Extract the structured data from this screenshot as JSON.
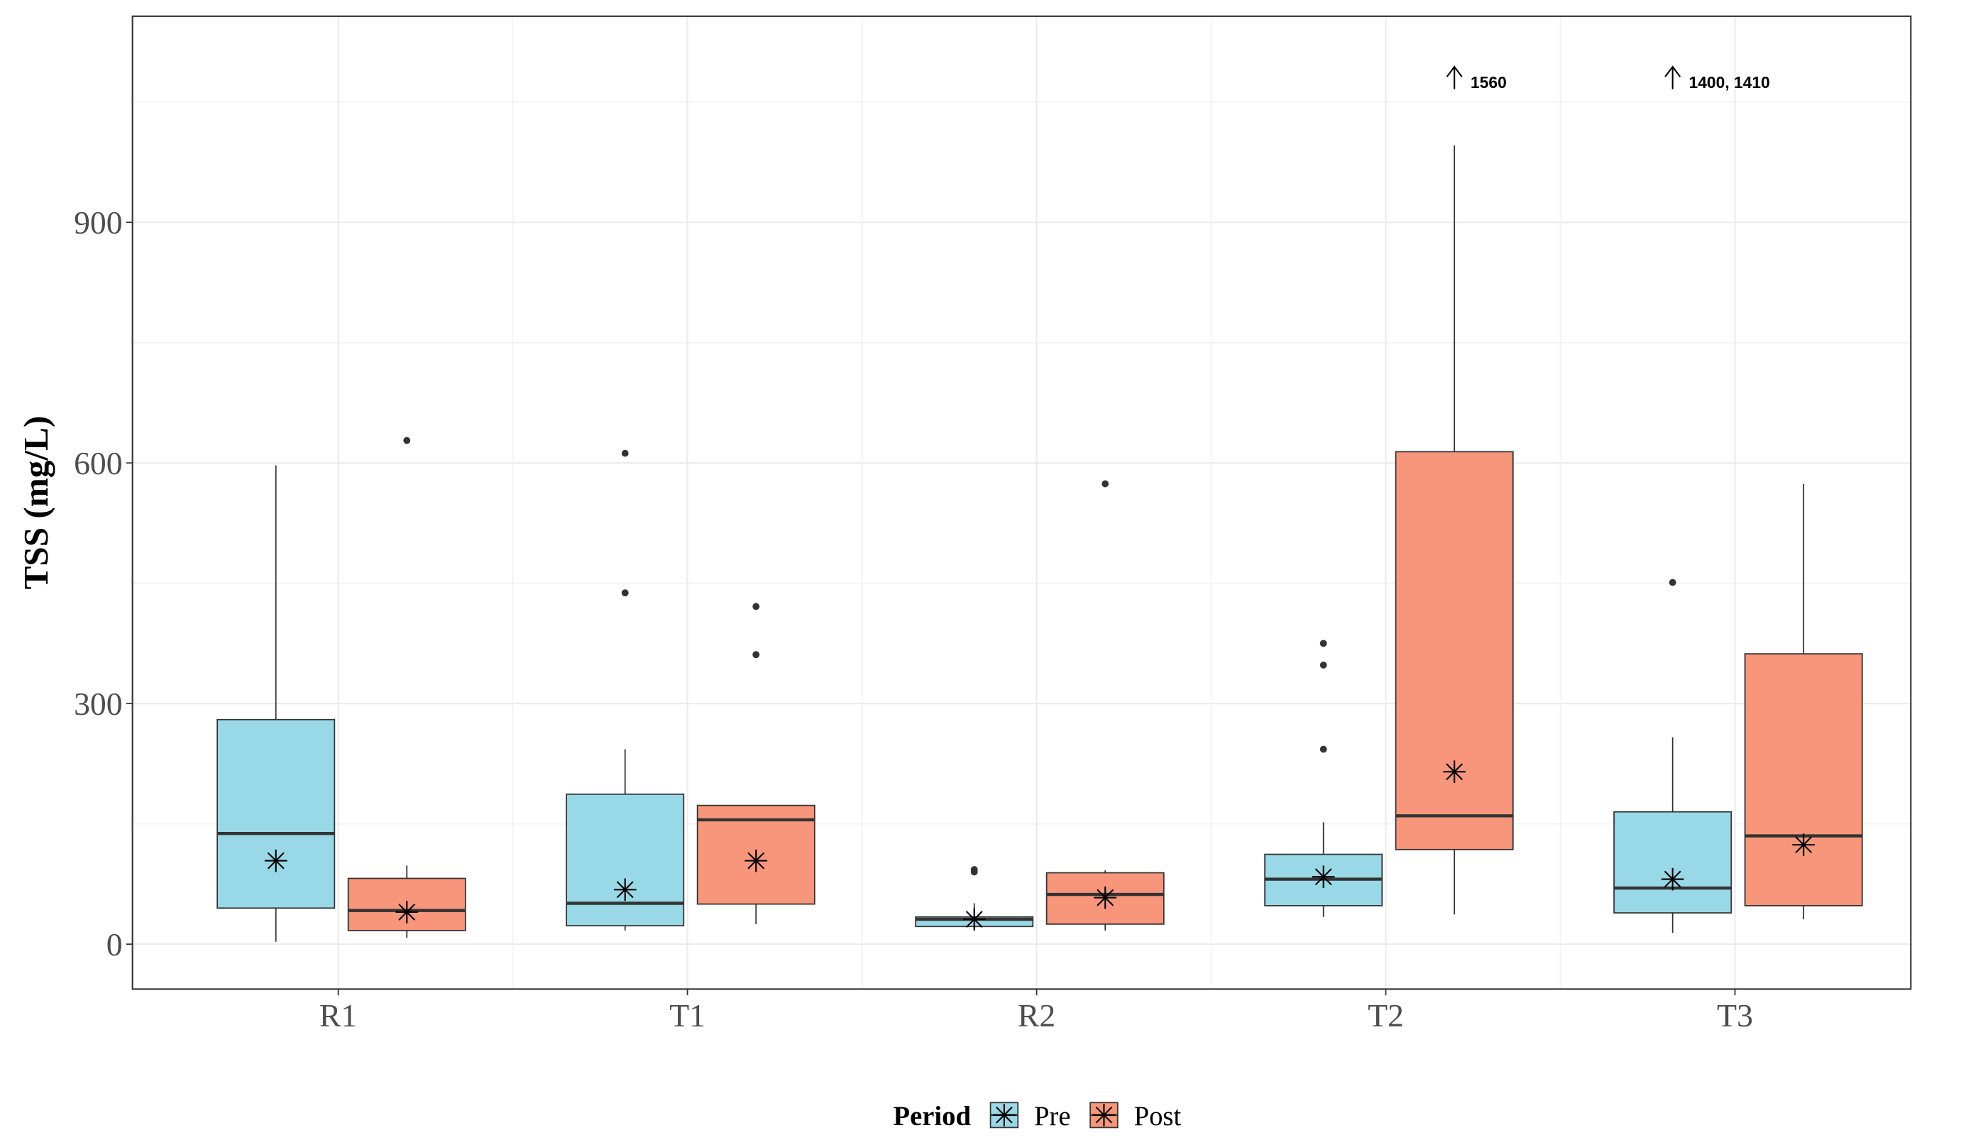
{
  "chart_data": {
    "type": "box",
    "y_label": "TSS (mg/L)",
    "legend_title": "Period",
    "legend_position": "bottom",
    "grid": true,
    "categories": [
      "R1",
      "T1",
      "R2",
      "T2",
      "T3"
    ],
    "ylim": [
      -56,
      1157
    ],
    "yticks": [
      0,
      300,
      600,
      900
    ],
    "y_minor_ticks": [
      150,
      450,
      750,
      1050
    ],
    "series": [
      {
        "name": "Pre",
        "color": "#99d8e6",
        "boxes": [
          {
            "min": 3,
            "q1": 45,
            "median": 138,
            "q3": 280,
            "max": 597,
            "mean": 104,
            "outliers": []
          },
          {
            "min": 17,
            "q1": 23,
            "median": 51,
            "q3": 187,
            "max": 243,
            "mean": 68,
            "outliers": [
              612,
              438
            ]
          },
          {
            "min": 20,
            "q1": 22,
            "median": 31,
            "q3": 34,
            "max": 51,
            "mean": 31,
            "outliers": [
              93,
              90
            ]
          },
          {
            "min": 34,
            "q1": 48,
            "median": 81,
            "q3": 112,
            "max": 152,
            "mean": 84,
            "outliers": [
              375,
              348,
              243
            ]
          },
          {
            "min": 14,
            "q1": 39,
            "median": 70,
            "q3": 165,
            "max": 258,
            "mean": 81,
            "outliers": [
              451
            ]
          }
        ]
      },
      {
        "name": "Post",
        "color": "#f7967a",
        "boxes": [
          {
            "min": 8,
            "q1": 17,
            "median": 42,
            "q3": 82,
            "max": 98,
            "mean": 40,
            "outliers": [
              628
            ]
          },
          {
            "min": 25,
            "q1": 50,
            "median": 155,
            "q3": 173,
            "max": 173,
            "mean": 104,
            "outliers": [
              421,
              361
            ]
          },
          {
            "min": 17,
            "q1": 25,
            "median": 62,
            "q3": 89,
            "max": 92,
            "mean": 58,
            "outliers": [
              574
            ]
          },
          {
            "min": 37,
            "q1": 118,
            "median": 160,
            "q3": 614,
            "max": 996,
            "mean": 215,
            "outliers": []
          },
          {
            "min": 31,
            "q1": 48,
            "median": 135,
            "q3": 362,
            "max": 574,
            "mean": 124,
            "outliers": []
          }
        ]
      }
    ],
    "annotations": [
      {
        "text": "1560",
        "category": "T2",
        "series": "Post"
      },
      {
        "text": "1400, 1410",
        "category": "T3",
        "series": "Pre"
      }
    ]
  }
}
